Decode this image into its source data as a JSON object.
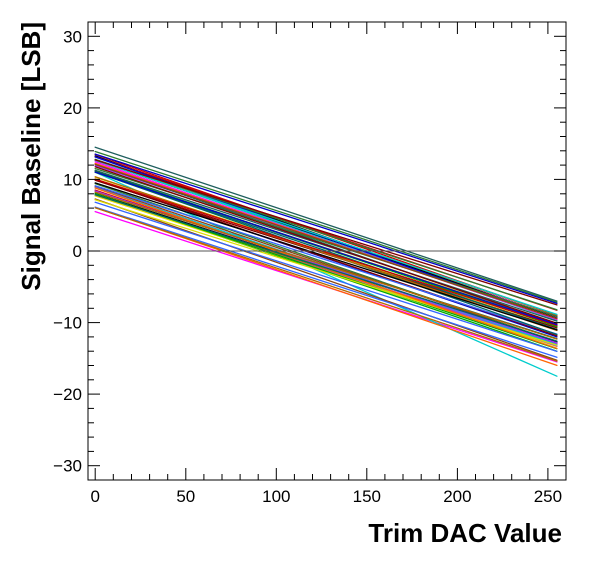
{
  "chart_data": {
    "type": "line",
    "title": "",
    "xlabel": "Trim DAC Value",
    "ylabel": "Signal Baseline [LSB]",
    "xlim": [
      -4,
      260
    ],
    "ylim": [
      -32,
      32
    ],
    "x_ticks": [
      0,
      50,
      100,
      150,
      200,
      250
    ],
    "x_tick_labels": [
      "0",
      "50",
      "100",
      "150",
      "200",
      "250"
    ],
    "y_ticks": [
      -30,
      -20,
      -10,
      0,
      10,
      20,
      30
    ],
    "y_tick_labels": [
      "−30",
      "−20",
      "−10",
      "0",
      "10",
      "20",
      "30"
    ],
    "grid": false,
    "legend": "none",
    "reference_line_y": 0,
    "series_x_range": [
      0,
      255
    ],
    "series_count": 64,
    "series_start_range": [
      5.5,
      14.5
    ],
    "series_end_range": [
      -17.5,
      -7
    ],
    "representative_series": [
      {
        "x": [
          0,
          255
        ],
        "y": [
          14.5,
          -7.0
        ]
      },
      {
        "x": [
          0,
          255
        ],
        "y": [
          13.5,
          -9.0
        ]
      },
      {
        "x": [
          0,
          255
        ],
        "y": [
          10.0,
          -12.0
        ]
      },
      {
        "x": [
          0,
          255
        ],
        "y": [
          8.0,
          -14.0
        ]
      },
      {
        "x": [
          0,
          255
        ],
        "y": [
          5.5,
          -15.5
        ]
      },
      {
        "x": [
          0,
          255
        ],
        "y": [
          11.0,
          -17.5
        ]
      }
    ],
    "colors": [
      "#1f5f5f",
      "#cc0000",
      "#0000cc",
      "#00aa00",
      "#ff00ff",
      "#00cccc",
      "#dddd00",
      "#2e7d32",
      "#8b4513",
      "#000000",
      "#9933ff",
      "#ff6600",
      "#3366ff",
      "#800000",
      "#006666",
      "#b36b00"
    ]
  }
}
